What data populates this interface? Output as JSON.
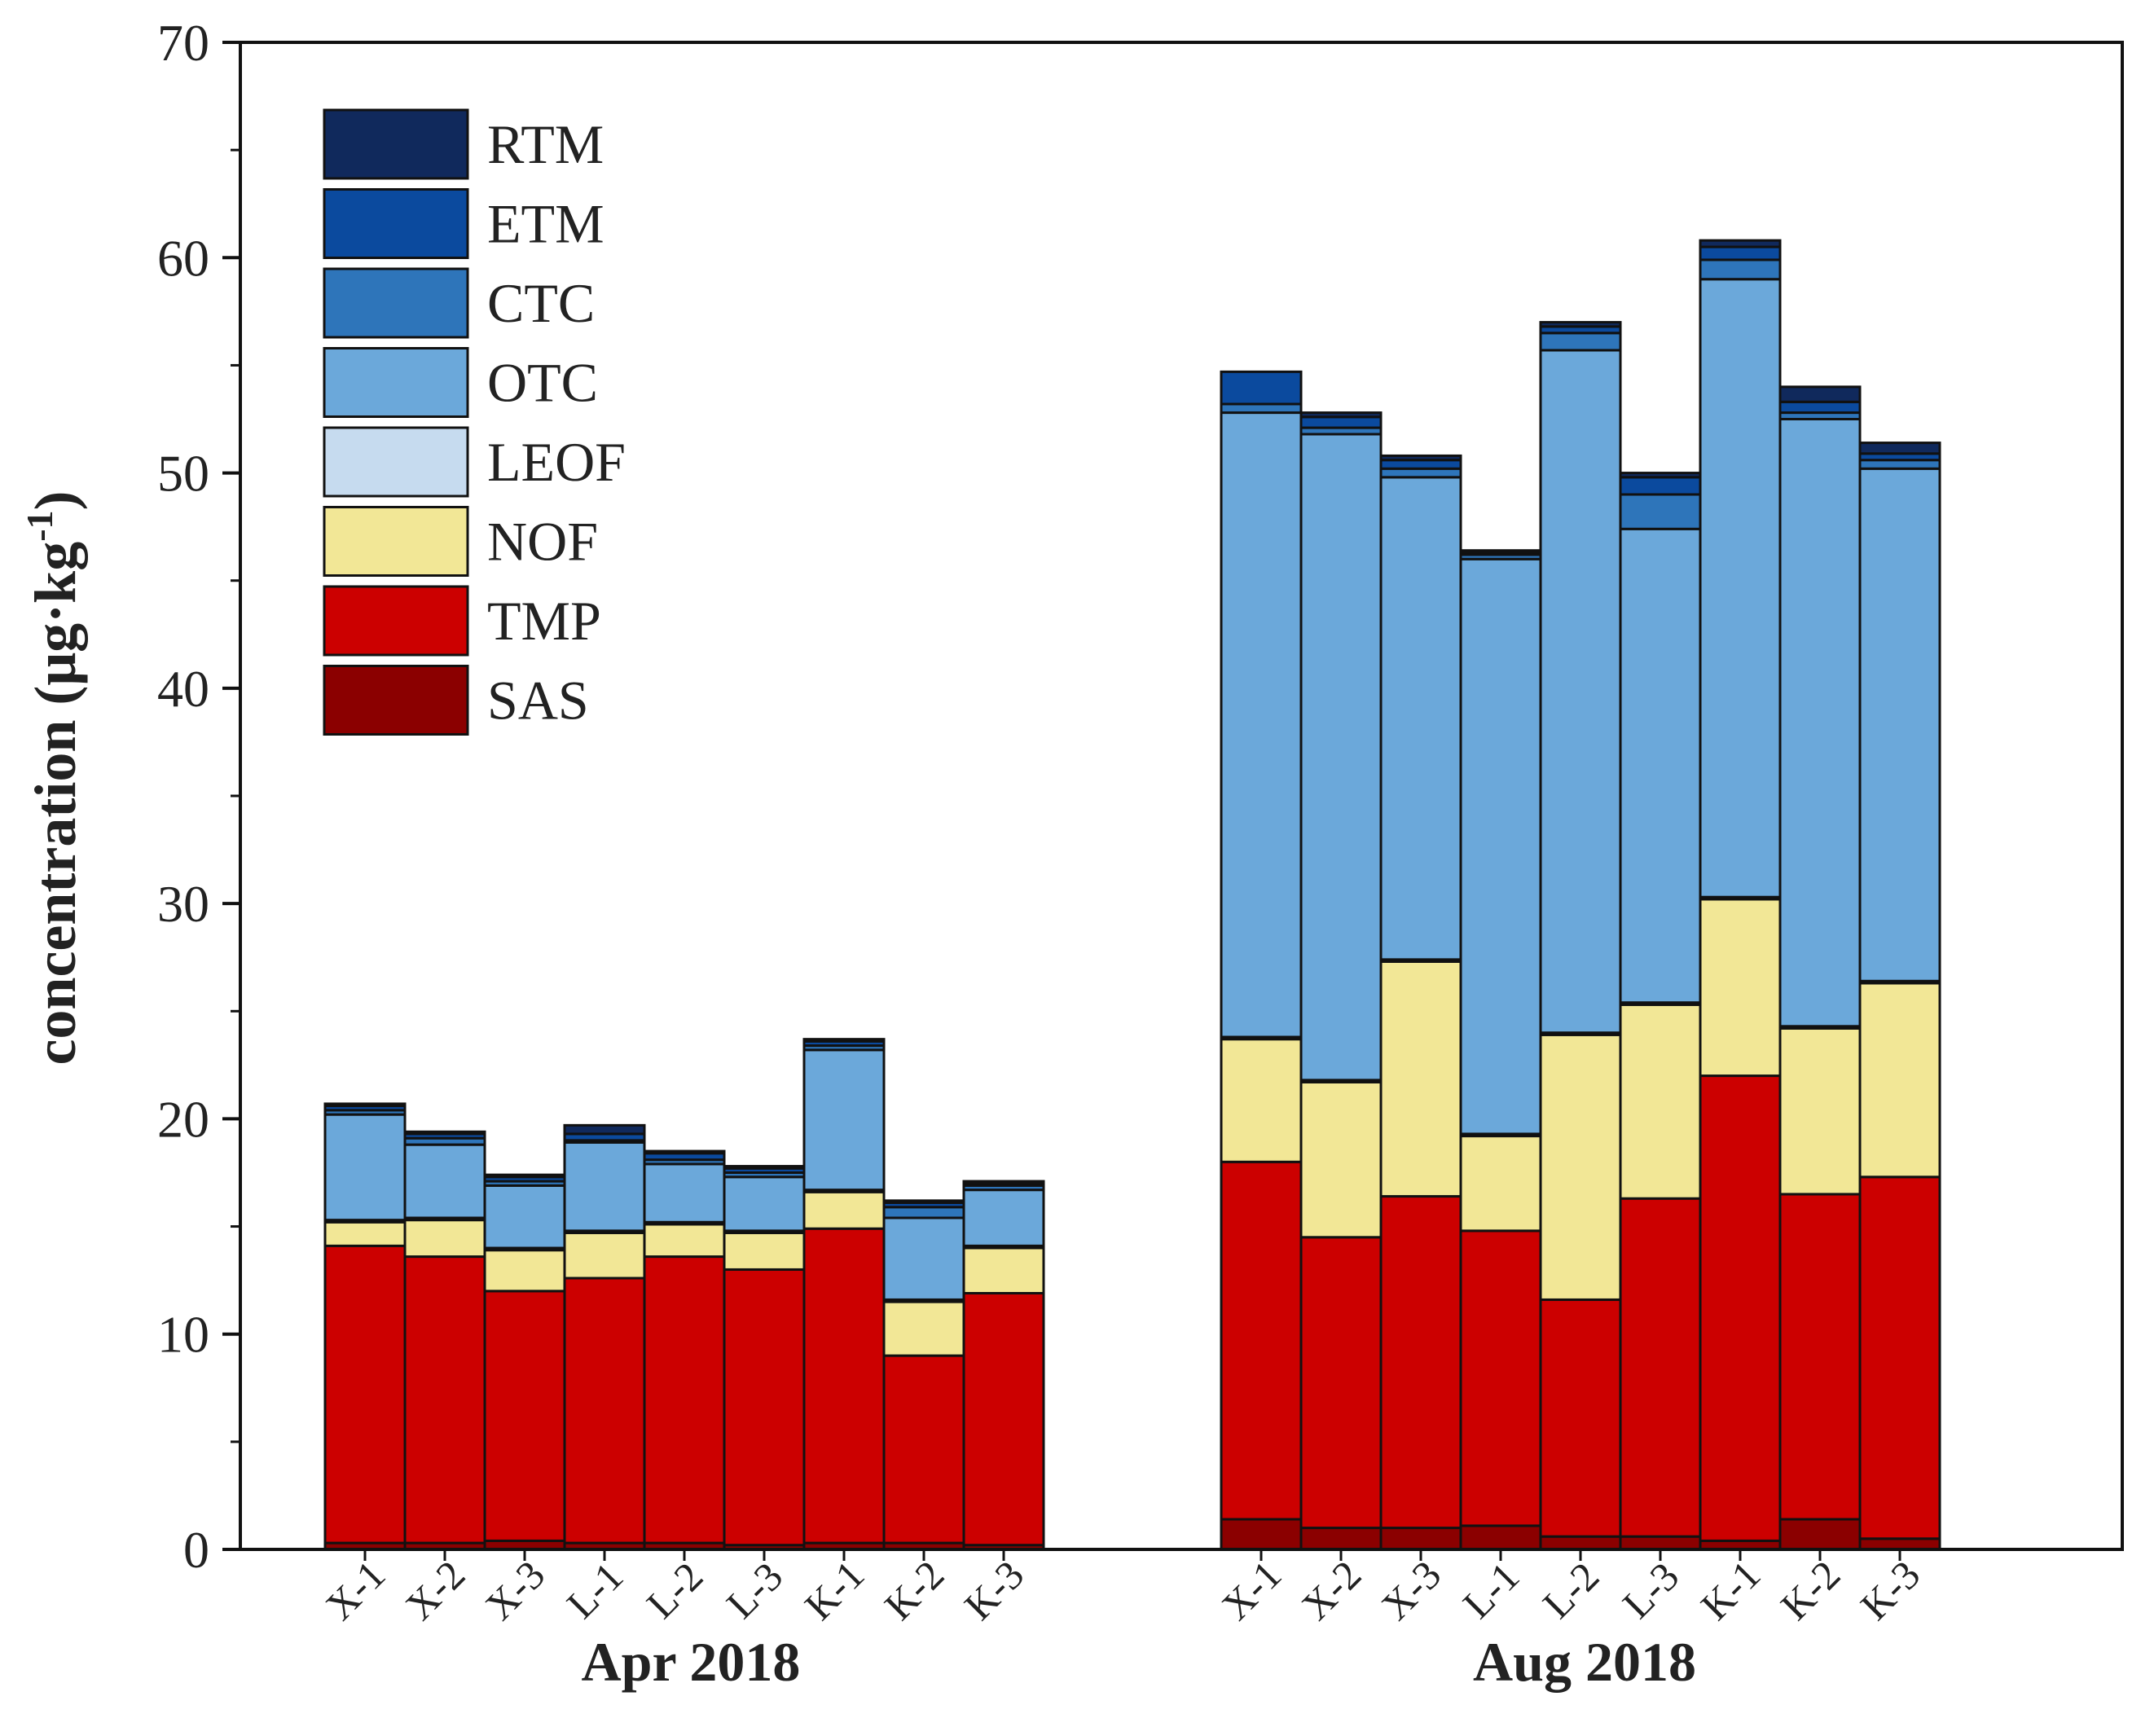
{
  "chart_data": {
    "type": "bar",
    "stacked": true,
    "title": "",
    "xlabel": "",
    "ylabel": "concentration (μg·kg",
    "ylabel_superscript": "-1",
    "ylabel_close": ")",
    "ylim": [
      0,
      70
    ],
    "yticks": [
      0,
      10,
      20,
      30,
      40,
      50,
      60,
      70
    ],
    "legend_position": "top-left",
    "groups": [
      {
        "label": "Apr 2018",
        "categories": [
          "X-1",
          "X-2",
          "X-3",
          "L-1",
          "L-2",
          "L-3",
          "K-1",
          "K-2",
          "K-3"
        ]
      },
      {
        "label": "Aug 2018",
        "categories": [
          "X-1",
          "X-2",
          "X-3",
          "L-1",
          "L-2",
          "L-3",
          "K-1",
          "K-2",
          "K-3"
        ]
      }
    ],
    "legend_order": [
      "RTM",
      "ETM",
      "CTC",
      "OTC",
      "LEOF",
      "NOF",
      "TMP",
      "SAS"
    ],
    "series": [
      {
        "name": "SAS",
        "color": "#8B0000",
        "values": [
          0.3,
          0.3,
          0.4,
          0.3,
          0.3,
          0.2,
          0.3,
          0.3,
          0.2,
          1.4,
          1.0,
          1.0,
          1.1,
          0.6,
          0.6,
          0.4,
          1.4,
          0.5
        ]
      },
      {
        "name": "TMP",
        "color": "#CC0000",
        "values": [
          13.8,
          13.3,
          11.6,
          12.3,
          13.3,
          12.8,
          14.6,
          8.7,
          11.7,
          16.6,
          13.5,
          15.4,
          13.7,
          11.0,
          15.7,
          21.6,
          15.1,
          16.8
        ]
      },
      {
        "name": "NOF",
        "color": "#F2E796",
        "values": [
          1.1,
          1.7,
          1.9,
          2.1,
          1.5,
          1.7,
          1.7,
          2.5,
          2.1,
          5.7,
          7.2,
          10.9,
          4.4,
          12.3,
          9.0,
          8.2,
          7.7,
          9.0
        ]
      },
      {
        "name": "LEOF",
        "color": "#C6DBEF",
        "values": [
          0.1,
          0.1,
          0.1,
          0.1,
          0.1,
          0.1,
          0.1,
          0.1,
          0.1,
          0.1,
          0.1,
          0.1,
          0.1,
          0.1,
          0.1,
          0.1,
          0.1,
          0.1
        ]
      },
      {
        "name": "OTC",
        "color": "#6BA8DA",
        "values": [
          4.9,
          3.4,
          2.9,
          4.1,
          2.7,
          2.5,
          6.5,
          3.8,
          2.6,
          29.0,
          30.0,
          22.4,
          26.7,
          31.7,
          22.0,
          28.7,
          28.2,
          23.8
        ]
      },
      {
        "name": "CTC",
        "color": "#2E75BA",
        "values": [
          0.2,
          0.3,
          0.2,
          0.1,
          0.2,
          0.2,
          0.2,
          0.5,
          0.2,
          0.4,
          0.3,
          0.4,
          0.2,
          0.8,
          1.6,
          0.9,
          0.3,
          0.4
        ]
      },
      {
        "name": "ETM",
        "color": "#0B4A9E",
        "values": [
          0.2,
          0.2,
          0.2,
          0.3,
          0.3,
          0.2,
          0.2,
          0.2,
          0.1,
          1.5,
          0.5,
          0.4,
          0.1,
          0.3,
          0.8,
          0.6,
          0.5,
          0.3
        ]
      },
      {
        "name": "RTM",
        "color": "#10295C",
        "values": [
          0.1,
          0.1,
          0.1,
          0.4,
          0.1,
          0.1,
          0.1,
          0.1,
          0.1,
          0.0,
          0.2,
          0.2,
          0.1,
          0.2,
          0.2,
          0.3,
          0.7,
          0.5
        ]
      }
    ]
  }
}
